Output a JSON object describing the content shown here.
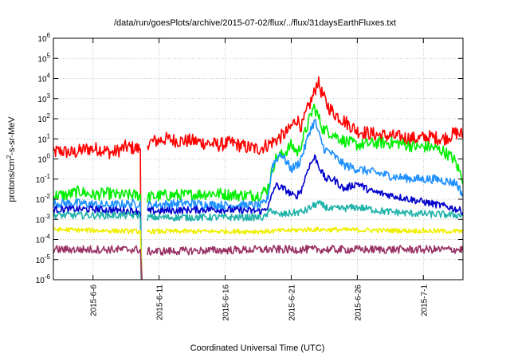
{
  "chart_data": {
    "type": "line",
    "title": "/data/run/goesPlots/archive/2015-07-02/flux/../flux/31daysEarthFluxes.txt",
    "xlabel": "Coordinated Universal Time (UTC)",
    "ylabel": "protons/cm2-s-sr-MeV",
    "y_scale": "log",
    "ylim": [
      1e-06,
      1000000.0
    ],
    "xlim_day": [
      0,
      31
    ],
    "x_ticks": [
      {
        "day": 3,
        "label": "2015-6-6"
      },
      {
        "day": 8,
        "label": "2015-6-11"
      },
      {
        "day": 13,
        "label": "2015-6-16"
      },
      {
        "day": 18,
        "label": "2015-6-21"
      },
      {
        "day": 23,
        "label": "2015-6-26"
      },
      {
        "day": 28,
        "label": "2015-7-1"
      }
    ],
    "y_ticks": [
      {
        "value": 1e-06,
        "base": "10",
        "exp": "-6"
      },
      {
        "value": 1e-05,
        "base": "10",
        "exp": "-5"
      },
      {
        "value": 0.0001,
        "base": "10",
        "exp": "-4"
      },
      {
        "value": 0.001,
        "base": "10",
        "exp": "-3"
      },
      {
        "value": 0.01,
        "base": "10",
        "exp": "-2"
      },
      {
        "value": 0.1,
        "base": "10",
        "exp": "-1"
      },
      {
        "value": 1,
        "base": "10",
        "exp": "0"
      },
      {
        "value": 10,
        "base": "10",
        "exp": "1"
      },
      {
        "value": 100,
        "base": "10",
        "exp": "2"
      },
      {
        "value": 1000,
        "base": "10",
        "exp": "3"
      },
      {
        "value": 10000,
        "base": "10",
        "exp": "4"
      },
      {
        "value": 100000,
        "base": "10",
        "exp": "5"
      },
      {
        "value": 1000000,
        "base": "10",
        "exp": "6"
      }
    ],
    "grid": true,
    "legend": "none",
    "data_gap_day": [
      6.6,
      7.1
    ],
    "series": [
      {
        "color": "#ff0000",
        "noise": 0.35,
        "keys": [
          [
            -0.2,
            0.3
          ],
          [
            0.5,
            0.4
          ],
          [
            1.5,
            0.3
          ],
          [
            2.5,
            0.5
          ],
          [
            3.5,
            0.5
          ],
          [
            4.5,
            0.3
          ],
          [
            5.5,
            0.6
          ],
          [
            6.5,
            0.5
          ],
          [
            7.1,
            0.8
          ],
          [
            8.5,
            1.0
          ],
          [
            9.5,
            0.9
          ],
          [
            10.5,
            0.9
          ],
          [
            11.5,
            0.8
          ],
          [
            12.5,
            0.7
          ],
          [
            13.5,
            0.8
          ],
          [
            14.5,
            0.6
          ],
          [
            15.5,
            0.5
          ],
          [
            16.2,
            0.7
          ],
          [
            17.0,
            1.0
          ],
          [
            17.8,
            1.4
          ],
          [
            18.4,
            2.0
          ],
          [
            18.8,
            1.6
          ],
          [
            19.2,
            2.4
          ],
          [
            19.7,
            3.2
          ],
          [
            20.0,
            3.9
          ],
          [
            20.3,
            3.3
          ],
          [
            20.7,
            2.7
          ],
          [
            21.2,
            2.3
          ],
          [
            22.0,
            1.9
          ],
          [
            23.0,
            1.4
          ],
          [
            24.5,
            1.2
          ],
          [
            26.0,
            1.1
          ],
          [
            27.5,
            1.0
          ],
          [
            28.5,
            1.1
          ],
          [
            29.5,
            1.0
          ],
          [
            30.5,
            1.3
          ],
          [
            31.0,
            1.2
          ]
        ]
      },
      {
        "color": "#00ee00",
        "noise": 0.3,
        "keys": [
          [
            -0.2,
            -1.8
          ],
          [
            1.0,
            -1.8
          ],
          [
            2.0,
            -1.6
          ],
          [
            3.0,
            -1.8
          ],
          [
            4.0,
            -1.7
          ],
          [
            5.0,
            -1.8
          ],
          [
            6.0,
            -1.8
          ],
          [
            6.5,
            -1.8
          ],
          [
            7.1,
            -1.9
          ],
          [
            8.5,
            -1.8
          ],
          [
            10.0,
            -1.8
          ],
          [
            12.0,
            -1.7
          ],
          [
            14.0,
            -1.8
          ],
          [
            15.5,
            -1.8
          ],
          [
            16.2,
            -1.5
          ],
          [
            16.8,
            0.0
          ],
          [
            17.5,
            0.3
          ],
          [
            18.0,
            0.7
          ],
          [
            18.5,
            0.3
          ],
          [
            19.0,
            1.2
          ],
          [
            19.4,
            2.0
          ],
          [
            19.7,
            2.6
          ],
          [
            20.0,
            2.2
          ],
          [
            20.4,
            1.5
          ],
          [
            21.0,
            1.3
          ],
          [
            22.0,
            0.9
          ],
          [
            23.0,
            0.7
          ],
          [
            24.5,
            0.8
          ],
          [
            26.0,
            0.8
          ],
          [
            27.5,
            0.6
          ],
          [
            28.5,
            0.6
          ],
          [
            29.5,
            0.4
          ],
          [
            30.3,
            0.0
          ],
          [
            31.0,
            -1.0
          ]
        ]
      },
      {
        "color": "#1e90ff",
        "noise": 0.22,
        "keys": [
          [
            -0.2,
            -2.2
          ],
          [
            2.0,
            -2.2
          ],
          [
            4.0,
            -2.3
          ],
          [
            6.5,
            -2.2
          ],
          [
            7.1,
            -2.3
          ],
          [
            10.0,
            -2.2
          ],
          [
            13.0,
            -2.3
          ],
          [
            15.8,
            -2.3
          ],
          [
            16.2,
            -2.0
          ],
          [
            16.6,
            -0.3
          ],
          [
            17.2,
            0.3
          ],
          [
            18.0,
            -0.5
          ],
          [
            18.6,
            -0.2
          ],
          [
            19.0,
            0.5
          ],
          [
            19.4,
            1.4
          ],
          [
            19.8,
            1.9
          ],
          [
            20.1,
            1.2
          ],
          [
            20.5,
            0.5
          ],
          [
            21.0,
            0.3
          ],
          [
            22.0,
            -0.3
          ],
          [
            23.0,
            -0.5
          ],
          [
            24.5,
            -0.7
          ],
          [
            26.0,
            -0.9
          ],
          [
            27.5,
            -1.0
          ],
          [
            29.0,
            -1.0
          ],
          [
            30.5,
            -1.2
          ],
          [
            31.0,
            -1.8
          ]
        ]
      },
      {
        "color": "#0000cd",
        "noise": 0.18,
        "keys": [
          [
            -0.2,
            -2.5
          ],
          [
            3.0,
            -2.5
          ],
          [
            6.5,
            -2.6
          ],
          [
            7.1,
            -2.6
          ],
          [
            12.0,
            -2.5
          ],
          [
            15.8,
            -2.6
          ],
          [
            16.3,
            -2.3
          ],
          [
            16.8,
            -1.3
          ],
          [
            17.5,
            -1.5
          ],
          [
            18.3,
            -1.9
          ],
          [
            18.8,
            -1.5
          ],
          [
            19.3,
            -0.4
          ],
          [
            19.8,
            0.1
          ],
          [
            20.2,
            -0.5
          ],
          [
            20.6,
            -1.0
          ],
          [
            21.2,
            -1.0
          ],
          [
            22.0,
            -1.5
          ],
          [
            23.0,
            -1.2
          ],
          [
            24.0,
            -1.6
          ],
          [
            25.5,
            -1.8
          ],
          [
            27.0,
            -2.0
          ],
          [
            28.5,
            -2.2
          ],
          [
            30.0,
            -2.4
          ],
          [
            31.0,
            -2.6
          ]
        ]
      },
      {
        "color": "#20b2aa",
        "noise": 0.18,
        "keys": [
          [
            -0.2,
            -2.8
          ],
          [
            3.0,
            -2.8
          ],
          [
            6.5,
            -2.8
          ],
          [
            7.1,
            -2.9
          ],
          [
            12.0,
            -2.9
          ],
          [
            16.0,
            -2.9
          ],
          [
            16.5,
            -2.5
          ],
          [
            17.0,
            -2.8
          ],
          [
            19.0,
            -2.6
          ],
          [
            20.0,
            -2.2
          ],
          [
            21.0,
            -2.5
          ],
          [
            23.0,
            -2.4
          ],
          [
            25.0,
            -2.6
          ],
          [
            27.0,
            -2.7
          ],
          [
            31.0,
            -2.8
          ]
        ]
      },
      {
        "color": "#eeee00",
        "noise": 0.12,
        "keys": [
          [
            -0.2,
            -3.5
          ],
          [
            6.5,
            -3.6
          ],
          [
            7.1,
            -3.6
          ],
          [
            16.0,
            -3.6
          ],
          [
            19.5,
            -3.5
          ],
          [
            31.0,
            -3.6
          ]
        ]
      },
      {
        "color": "#993366",
        "noise": 0.2,
        "keys": [
          [
            -0.2,
            -4.5
          ],
          [
            6.5,
            -4.5
          ],
          [
            7.1,
            -4.6
          ],
          [
            16.0,
            -4.5
          ],
          [
            19.0,
            -4.5
          ],
          [
            31.0,
            -4.5
          ]
        ]
      }
    ]
  }
}
